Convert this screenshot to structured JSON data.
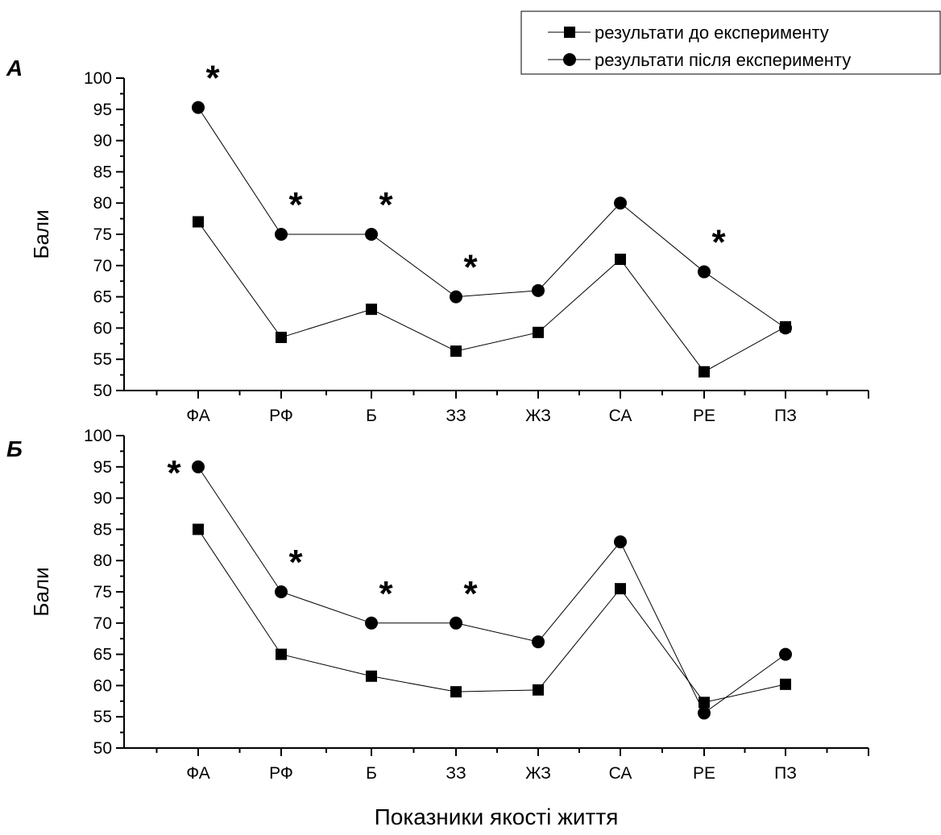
{
  "legend": {
    "before_label": "результати до експерименту",
    "after_label": "результати після експерименту"
  },
  "x_axis_label": "Показники якості життя",
  "chart_data": [
    {
      "type": "line",
      "panel_label": "А",
      "ylabel": "Бали",
      "categories": [
        "ФА",
        "РФ",
        "Б",
        "ЗЗ",
        "ЖЗ",
        "СА",
        "РЕ",
        "ПЗ"
      ],
      "ylim": [
        50,
        100
      ],
      "y_ticks": [
        "50",
        "55",
        "60",
        "65",
        "70",
        "75",
        "80",
        "85",
        "90",
        "95",
        "100"
      ],
      "series": [
        {
          "name": "результати до експерименту",
          "marker": "square",
          "values": [
            77,
            58.5,
            63,
            56.3,
            59.3,
            71,
            53,
            60.2
          ]
        },
        {
          "name": "результати після експерименту",
          "marker": "circle",
          "values": [
            95.3,
            75,
            75,
            65,
            66,
            80,
            69,
            60
          ]
        }
      ],
      "significance": [
        "*",
        "*",
        "*",
        "*",
        "",
        "",
        "*",
        ""
      ]
    },
    {
      "type": "line",
      "panel_label": "Б",
      "ylabel": "Бали",
      "categories": [
        "ФА",
        "РФ",
        "Б",
        "ЗЗ",
        "ЖЗ",
        "СА",
        "РЕ",
        "ПЗ"
      ],
      "ylim": [
        50,
        100
      ],
      "y_ticks": [
        "50",
        "55",
        "60",
        "65",
        "70",
        "75",
        "80",
        "85",
        "90",
        "95",
        "100"
      ],
      "series": [
        {
          "name": "результати до експерименту",
          "marker": "square",
          "values": [
            85,
            65,
            61.5,
            59,
            59.3,
            75.5,
            57.3,
            60.2
          ]
        },
        {
          "name": "результати після експерименту",
          "marker": "circle",
          "values": [
            95,
            75,
            70,
            70,
            67,
            83,
            55.6,
            65
          ]
        }
      ],
      "significance": [
        "*",
        "*",
        "*",
        "*",
        "",
        "",
        "",
        ""
      ]
    }
  ]
}
